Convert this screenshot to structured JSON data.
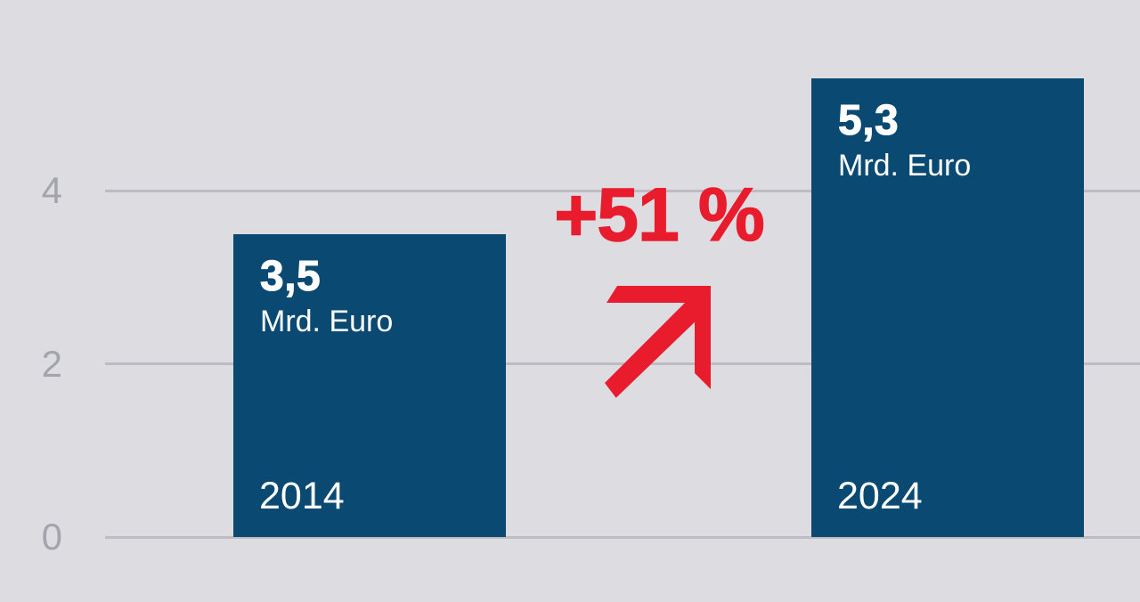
{
  "chart_data": {
    "type": "bar",
    "title": "",
    "categories": [
      "2014",
      "2024"
    ],
    "values": [
      3.5,
      5.3
    ],
    "unit_label": "Mrd. Euro",
    "bars": [
      {
        "year": "2014",
        "value": 3.5,
        "value_label": "3,5",
        "unit": "Mrd. Euro"
      },
      {
        "year": "2024",
        "value": 5.3,
        "value_label": "5,3",
        "unit": "Mrd. Euro"
      }
    ],
    "annotation": {
      "text": "+51 %",
      "icon": "trend-up-arrow"
    },
    "yticks": [
      0,
      2,
      4
    ],
    "ytick_labels": [
      "0",
      "2",
      "4"
    ],
    "ylim": [
      0,
      6.2
    ],
    "grid": true,
    "legend": "none",
    "xlabel": "",
    "ylabel": "",
    "colors": {
      "background": "#dcdce1",
      "bar": "#0a4a72",
      "accent_red": "#e81c2c",
      "gridline": "#bcbcc2",
      "tick_label": "#a4a4ad",
      "bar_text": "#ffffff"
    }
  }
}
